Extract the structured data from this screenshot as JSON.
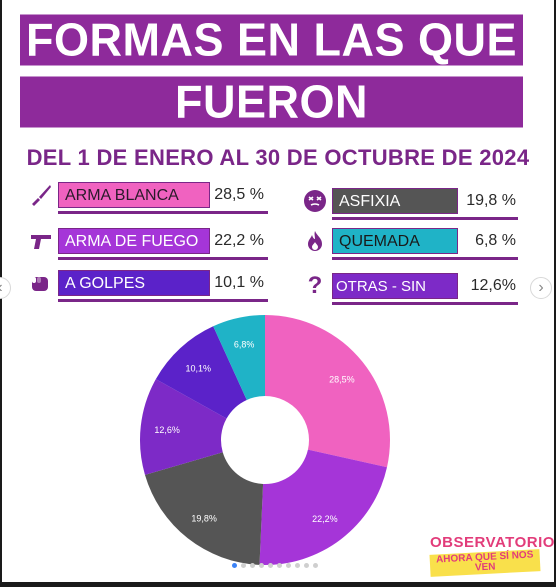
{
  "title_line1": "FORMAS EN LAS QUE",
  "title_line2": "FUERON ASESINADAS",
  "subtitle": "DEL 1 DE ENERO AL 30 DE OCTUBRE DE 2024",
  "legend_left": [
    {
      "icon": "knife-icon",
      "label": "ARMA BLANCA",
      "value": "28,5 %",
      "color": "#f062c0",
      "text_color": "#2a1a2a"
    },
    {
      "icon": "gun-icon",
      "label": "ARMA DE FUEGO",
      "value": "22,2 %",
      "color": "#a535d8",
      "text_color": "#ffffff"
    },
    {
      "icon": "fist-icon",
      "label": "A GOLPES",
      "value": "10,1 %",
      "color": "#5b22c9",
      "text_color": "#ffffff"
    }
  ],
  "legend_right": [
    {
      "icon": "asphyxia-face-icon",
      "label": "ASFIXIA",
      "value": "19,8 %",
      "color": "#555555",
      "text_color": "#ffffff"
    },
    {
      "icon": "fire-icon",
      "label": "QUEMADA",
      "value": "6,8 %",
      "color": "#1fb3c7",
      "text_color": "#1a1a1a"
    },
    {
      "icon": "question-mark-icon",
      "label": "OTRAS - SIN DATOS",
      "value": "12,6%",
      "color": "#7d2ac7",
      "text_color": "#ffffff"
    }
  ],
  "chart_data": {
    "type": "pie",
    "variant": "donut",
    "title": "",
    "slices": [
      {
        "name": "ARMA BLANCA",
        "value": 28.5,
        "label": "28,5%",
        "color": "#f062c0"
      },
      {
        "name": "ARMA DE FUEGO",
        "value": 22.2,
        "label": "22,2%",
        "color": "#a535d8"
      },
      {
        "name": "ASFIXIA",
        "value": 19.8,
        "label": "19,8%",
        "color": "#555555"
      },
      {
        "name": "OTRAS - SIN DATOS",
        "value": 12.6,
        "label": "12,6%",
        "color": "#7d2ac7"
      },
      {
        "name": "A GOLPES",
        "value": 10.1,
        "label": "10,1%",
        "color": "#5b22c9"
      },
      {
        "name": "QUEMADA",
        "value": 6.8,
        "label": "6,8%",
        "color": "#1fb3c7"
      }
    ]
  },
  "logo": {
    "line1": "OBSERVATORIO",
    "line2": "AHORA QUE SÍ NOS VEN"
  },
  "nav": {
    "prev": "‹",
    "next": "›"
  },
  "carousel": {
    "count": 10,
    "active": 0
  }
}
